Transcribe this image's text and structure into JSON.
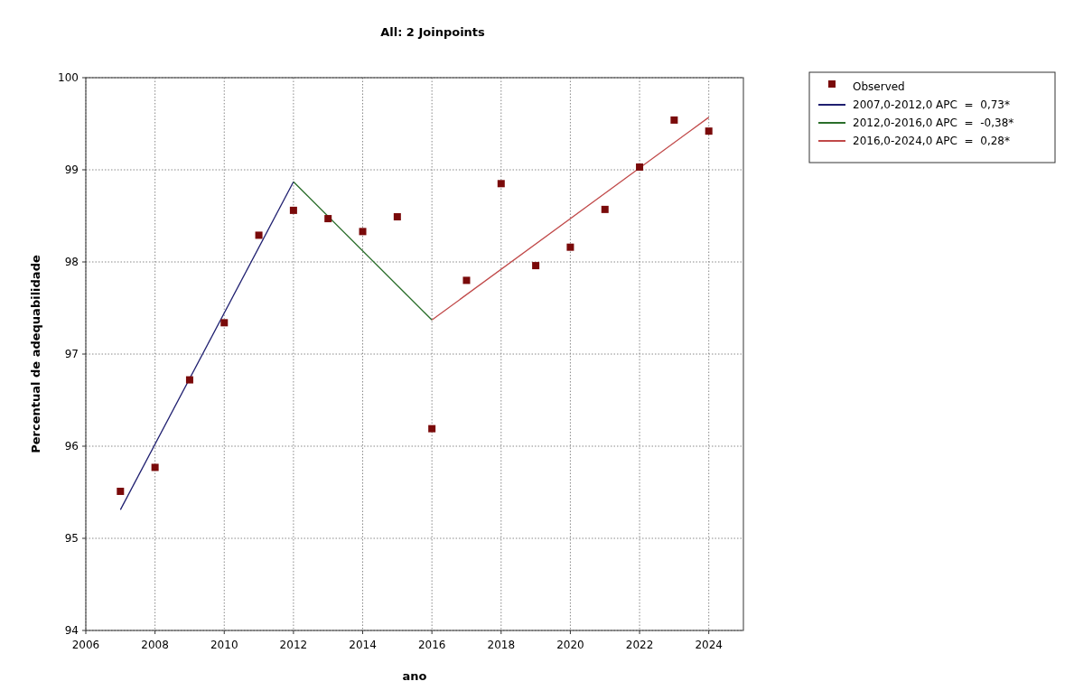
{
  "chart_data": {
    "type": "scatter",
    "title": "All: 2 Joinpoints",
    "xlabel": "ano",
    "ylabel": "Percentual de adequabilidade",
    "xlim": [
      2006,
      2025
    ],
    "xticks": [
      2006,
      2008,
      2010,
      2012,
      2014,
      2016,
      2018,
      2020,
      2022,
      2024
    ],
    "ylim": [
      94,
      100
    ],
    "yticks": [
      94,
      95,
      96,
      97,
      98,
      99,
      100
    ],
    "grid": true,
    "legend": "top right",
    "marker": "square",
    "series": [
      {
        "name": "Observed",
        "color": "#7a0a0a",
        "x": [
          2007,
          2008,
          2009,
          2010,
          2011,
          2012,
          2013,
          2014,
          2015,
          2016,
          2017,
          2018,
          2019,
          2020,
          2021,
          2022,
          2023,
          2024
        ],
        "values": [
          95.51,
          95.77,
          96.72,
          97.34,
          98.29,
          98.56,
          98.47,
          98.33,
          98.49,
          96.19,
          97.8,
          98.85,
          97.96,
          98.16,
          98.57,
          99.03,
          99.54,
          99.42
        ]
      },
      {
        "name": "2007,0-2012,0 APC  =  0,73*",
        "type": "line",
        "color": "#1f1f70",
        "marker": "none",
        "x": [
          2007,
          2012
        ],
        "values": [
          95.31,
          98.87
        ]
      },
      {
        "name": "2012,0-2016,0 APC  =  -0,38*",
        "type": "line",
        "color": "#2a6e2a",
        "marker": "none",
        "x": [
          2012,
          2016
        ],
        "values": [
          98.87,
          97.37
        ]
      },
      {
        "name": "2016,0-2024,0 APC  =  0,28*",
        "type": "line",
        "color": "#c04848",
        "marker": "none",
        "x": [
          2016,
          2024
        ],
        "values": [
          97.37,
          99.57
        ]
      }
    ]
  }
}
